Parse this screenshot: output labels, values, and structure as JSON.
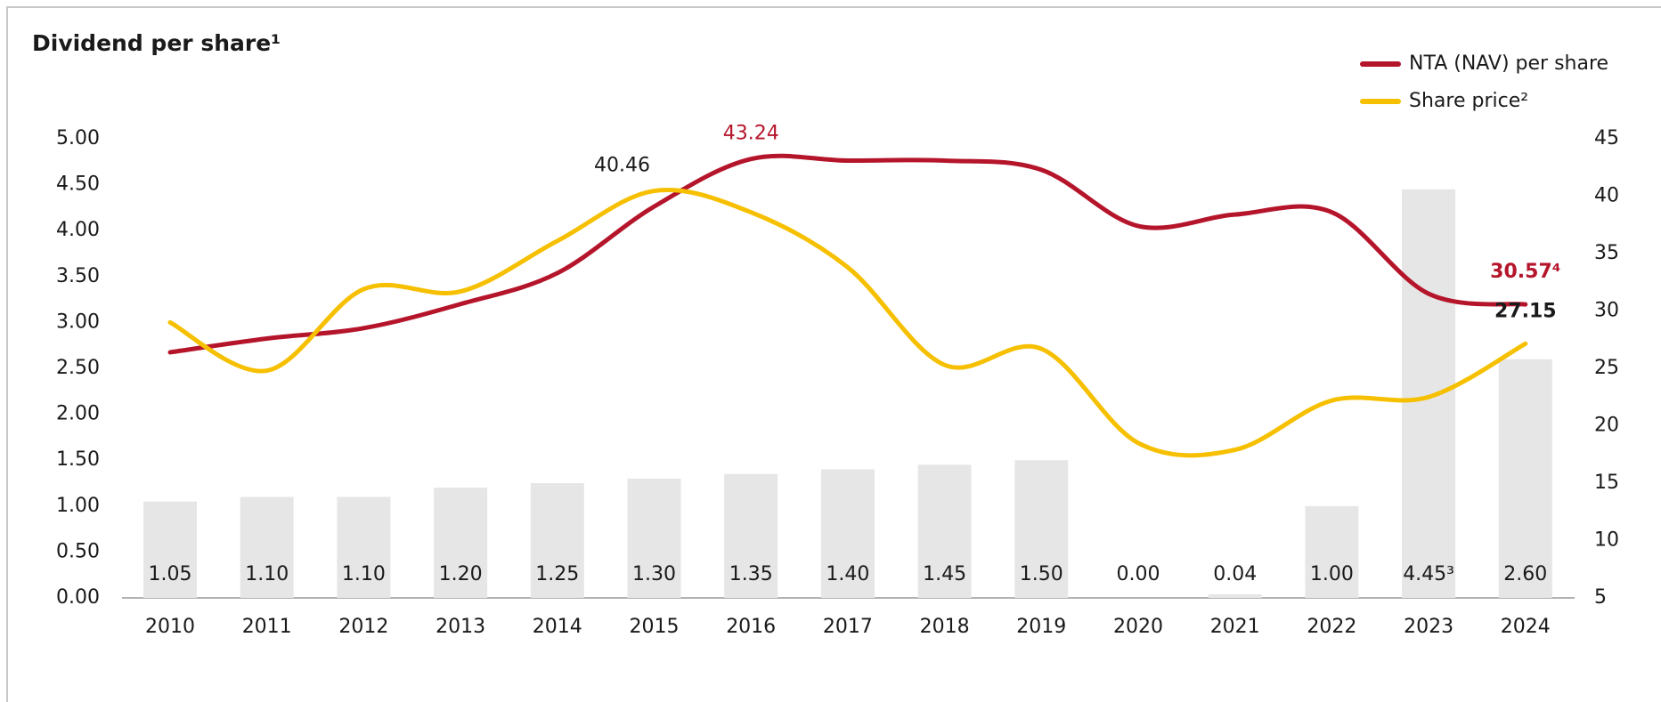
{
  "chart_data": {
    "type": "bar",
    "title": "Dividend per share¹",
    "categories": [
      "2010",
      "2011",
      "2012",
      "2013",
      "2014",
      "2015",
      "2016",
      "2017",
      "2018",
      "2019",
      "2020",
      "2021",
      "2022",
      "2023",
      "2024"
    ],
    "values": [
      1.05,
      1.1,
      1.1,
      1.2,
      1.25,
      1.3,
      1.35,
      1.4,
      1.45,
      1.5,
      0.0,
      0.04,
      1.0,
      4.45,
      2.6
    ],
    "value_labels": [
      "1.05",
      "1.10",
      "1.10",
      "1.20",
      "1.25",
      "1.30",
      "1.35",
      "1.40",
      "1.45",
      "1.50",
      "0.00",
      "0.04",
      "1.00",
      "4.45³",
      "2.60"
    ],
    "color": "#e6e6e6",
    "ylim": [
      0,
      5
    ],
    "yticks": [
      {
        "value": 0,
        "label": "0.00"
      },
      {
        "value": 0.5,
        "label": "0.50"
      },
      {
        "value": 1,
        "label": "1.00"
      },
      {
        "value": 1.5,
        "label": "1.50"
      },
      {
        "value": 2,
        "label": "2.00"
      },
      {
        "value": 2.5,
        "label": "2.50"
      },
      {
        "value": 3,
        "label": "3.00"
      },
      {
        "value": 3.5,
        "label": "3.50"
      },
      {
        "value": 4,
        "label": "4.00"
      },
      {
        "value": 4.5,
        "label": "4.50"
      },
      {
        "value": 5,
        "label": "5.00"
      }
    ],
    "y2lim": [
      5,
      45
    ],
    "y2ticks": [
      5,
      10,
      15,
      20,
      25,
      30,
      35,
      40,
      45
    ],
    "legend": "top-right",
    "series": [
      {
        "name": "NTA (NAV) per share",
        "color": "#b5152b",
        "axis": "y2",
        "values": [
          26.4,
          27.6,
          28.5,
          30.6,
          33.3,
          39.1,
          43.24,
          43.1,
          43.1,
          42.3,
          37.4,
          38.4,
          38.6,
          31.5,
          30.57
        ],
        "value_labels": [
          null,
          null,
          null,
          null,
          null,
          null,
          "43.24",
          null,
          null,
          null,
          null,
          null,
          null,
          null,
          "30.57⁴"
        ]
      },
      {
        "name": "Share price²",
        "color": "#f6c000",
        "axis": "y2",
        "values": [
          29.0,
          24.8,
          31.9,
          31.7,
          36.1,
          40.46,
          38.6,
          33.8,
          25.3,
          26.7,
          18.5,
          17.9,
          22.2,
          22.5,
          27.15
        ],
        "value_labels": [
          null,
          null,
          null,
          null,
          null,
          "40.46",
          null,
          null,
          null,
          null,
          null,
          null,
          null,
          null,
          "27.15"
        ]
      }
    ]
  }
}
